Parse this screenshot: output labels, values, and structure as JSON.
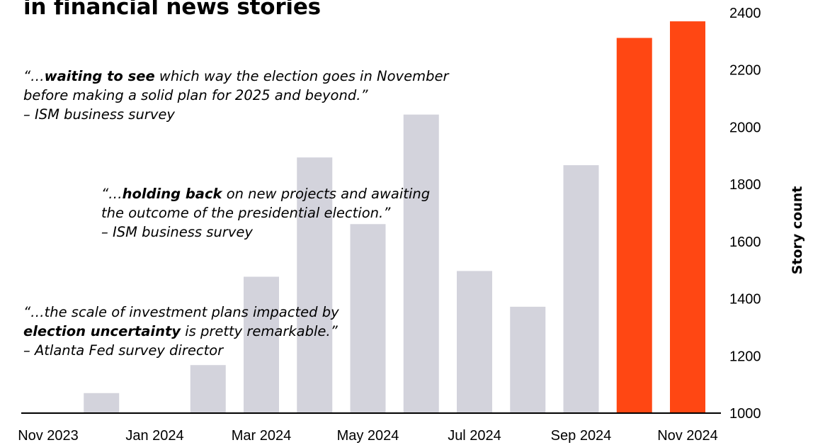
{
  "title": "in financial news stories",
  "quotes": [
    {
      "lines": [
        {
          "pre": "“…",
          "bold": "waiting to see",
          "post": " which way the election goes in November"
        },
        {
          "pre": "before making a solid plan for 2025 and beyond.”",
          "bold": "",
          "post": ""
        },
        {
          "pre": "– ISM business survey",
          "bold": "",
          "post": ""
        }
      ]
    },
    {
      "lines": [
        {
          "pre": "“…",
          "bold": "holding back",
          "post": " on new projects and awaiting"
        },
        {
          "pre": "the outcome of the presidential election.”",
          "bold": "",
          "post": ""
        },
        {
          "pre": "– ISM business survey",
          "bold": "",
          "post": ""
        }
      ]
    },
    {
      "lines": [
        {
          "pre": "“…the scale of investment plans impacted by",
          "bold": "",
          "post": ""
        },
        {
          "pre": "",
          "bold": "election uncertainty",
          "post": " is pretty remarkable.”"
        },
        {
          "pre": "– Atlanta Fed survey director",
          "bold": "",
          "post": ""
        }
      ]
    }
  ],
  "chart_data": {
    "type": "bar",
    "title": "in financial news stories",
    "ylabel": "Story count",
    "xlabel": "",
    "ylim": [
      1000,
      2400
    ],
    "yticks": [
      1000,
      1200,
      1400,
      1600,
      1800,
      2000,
      2200,
      2400
    ],
    "categories": [
      "Nov 2023",
      "Dec 2023",
      "Jan 2024",
      "Feb 2024",
      "Mar 2024",
      "Apr 2024",
      "May 2024",
      "Jun 2024",
      "Jul 2024",
      "Aug 2024",
      "Sep 2024",
      "Oct 2024",
      "Nov 2024"
    ],
    "xtick_labels": [
      "Nov 2023",
      "Jan 2024",
      "Mar 2024",
      "May 2024",
      "Jul 2024",
      "Sep 2024",
      "Nov 2024"
    ],
    "values": [
      1000,
      1070,
      1000,
      1168,
      1477,
      1894,
      1661,
      2044,
      1497,
      1372,
      1867,
      2312,
      2370
    ],
    "highlight": [
      false,
      false,
      false,
      false,
      false,
      false,
      false,
      false,
      false,
      false,
      false,
      true,
      true
    ],
    "colors": {
      "default": "#d3d3dc",
      "highlight": "#ff4713",
      "axis": "#000000"
    },
    "grid": false,
    "yaxis_side": "right"
  }
}
